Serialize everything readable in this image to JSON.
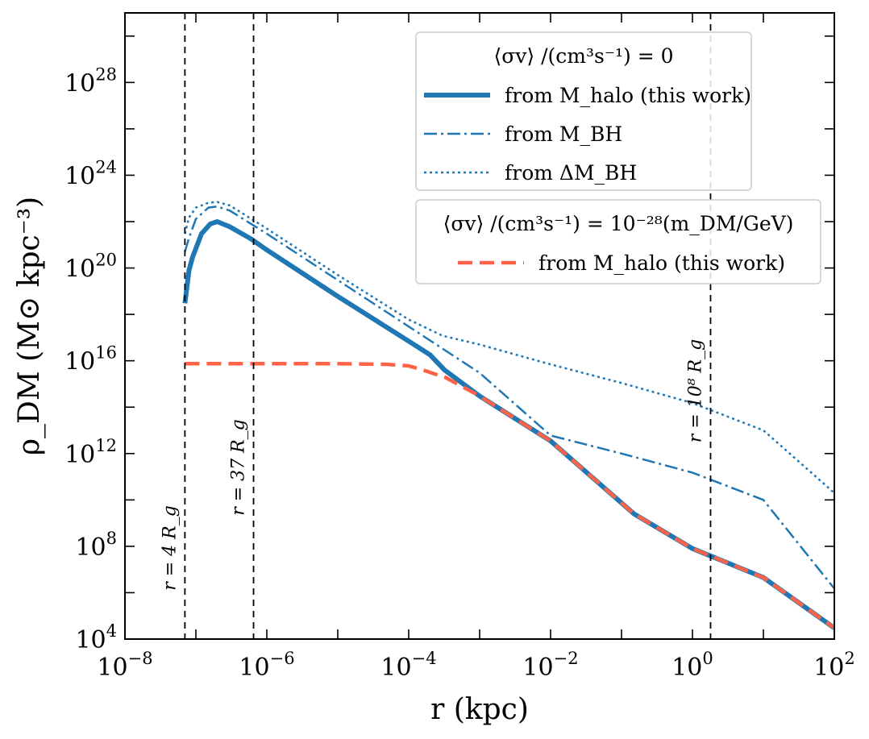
{
  "chart_data": {
    "type": "line",
    "xlabel": "r (kpc)",
    "ylabel": "ρ_DM (M⊙ kpc⁻³)",
    "x_scale": "log",
    "y_scale": "log",
    "xlim": [
      1e-08,
      100
    ],
    "ylim": [
      10000,
      1e+31
    ],
    "x_ticks": [
      {
        "value": 1e-08,
        "base": "10",
        "exp": "−8"
      },
      {
        "value": 1e-06,
        "base": "10",
        "exp": "−6"
      },
      {
        "value": 0.0001,
        "base": "10",
        "exp": "−4"
      },
      {
        "value": 0.01,
        "base": "10",
        "exp": "−2"
      },
      {
        "value": 1,
        "base": "10",
        "exp": "0"
      },
      {
        "value": 100,
        "base": "10",
        "exp": "2"
      }
    ],
    "y_ticks": [
      {
        "value": 10000.0,
        "base": "10",
        "exp": "4"
      },
      {
        "value": 100000000.0,
        "base": "10",
        "exp": "8"
      },
      {
        "value": 1000000000000.0,
        "base": "10",
        "exp": "12"
      },
      {
        "value": 1e+16,
        "base": "10",
        "exp": "16"
      },
      {
        "value": 1e+20,
        "base": "10",
        "exp": "20"
      },
      {
        "value": 1e+24,
        "base": "10",
        "exp": "24"
      },
      {
        "value": 1e+28,
        "base": "10",
        "exp": "28"
      }
    ],
    "vlines": [
      {
        "x": 7e-08,
        "label": "r = 4 R_g"
      },
      {
        "x": 6.5e-07,
        "label": "r = 37 R_g"
      },
      {
        "x": 1.8,
        "label": "r = 10⁸ R_g"
      }
    ],
    "series": [
      {
        "name": "from M_halo (this work)",
        "group": 0,
        "color": "#1f77b4",
        "style": "solid",
        "x": [
          7e-08,
          8e-08,
          9e-08,
          1.2e-07,
          1.6e-07,
          2e-07,
          3e-07,
          6e-07,
          1e-06,
          1e-05,
          0.0001,
          0.0002,
          0.00032,
          0.001,
          0.01,
          0.15,
          1,
          10,
          100
        ],
        "y": [
          3e+18,
          8e+19,
          3e+20,
          3e+21,
          8e+21,
          1e+22,
          6e+21,
          1.8e+21,
          6e+20,
          6e+18,
          7e+16,
          1.8e+16,
          4000000000000000.0,
          300000000000000.0,
          3500000000000.0,
          2500000000.0,
          80000000.0,
          4500000.0,
          30000.0
        ]
      },
      {
        "name": "from M_BH",
        "group": 0,
        "color": "#1f77b4",
        "style": "dashdot",
        "x": [
          7e-08,
          8e-08,
          1e-07,
          1.5e-07,
          2e-07,
          3e-07,
          1e-06,
          1e-05,
          0.0001,
          0.001,
          0.01,
          0.1,
          1,
          10,
          100
        ],
        "y": [
          5e+20,
          2e+21,
          1.3e+22,
          4e+22,
          4.5e+22,
          3e+22,
          3e+21,
          3e+19,
          3e+17,
          3000000000000000.0,
          6000000000000.0,
          1000000000000.0,
          150000000000.0,
          10000000000.0,
          1500000.0
        ]
      },
      {
        "name": "from ΔM_BH",
        "group": 0,
        "color": "#1f77b4",
        "style": "dotted",
        "x": [
          7e-08,
          8e-08,
          1e-07,
          1.5e-07,
          2e-07,
          3e-07,
          1e-06,
          1e-05,
          0.0001,
          0.0003,
          0.001,
          0.01,
          0.1,
          1,
          10,
          100
        ],
        "y": [
          3e+21,
          1.5e+22,
          4e+22,
          6.5e+22,
          7e+22,
          5e+22,
          5e+21,
          5e+19,
          6e+17,
          1.2e+17,
          5e+16,
          7000000000000000.0,
          1100000000000000.0,
          150000000000000.0,
          10000000000000.0,
          20000000000.0
        ]
      },
      {
        "name": "from M_halo (this work)",
        "group": 1,
        "color": "#ff6347",
        "style": "dashed",
        "x": [
          7e-08,
          1e-07,
          1e-06,
          1e-05,
          5e-05,
          0.0001,
          0.00016,
          0.00025,
          0.00032,
          0.001,
          0.01,
          0.15,
          1,
          10,
          100
        ],
        "y": [
          7500000000000000.0,
          7500000000000000.0,
          7500000000000000.0,
          7500000000000000.0,
          7000000000000000.0,
          6000000000000000.0,
          4000000000000000.0,
          2500000000000000.0,
          2000000000000000.0,
          300000000000000.0,
          3500000000000.0,
          2500000000.0,
          80000000.0,
          4500000.0,
          30000.0
        ]
      }
    ],
    "legends": [
      {
        "title": "⟨σv⟩ /(cm³s⁻¹) = 0",
        "placement": "top-right",
        "entries": [
          "from M_halo (this work)",
          "from M_BH",
          "from ΔM_BH"
        ]
      },
      {
        "title": "⟨σv⟩ /(cm³s⁻¹) = 10⁻²⁸(m_DM/GeV)",
        "placement": "right",
        "entries": [
          "from M_halo (this work)"
        ]
      }
    ]
  }
}
